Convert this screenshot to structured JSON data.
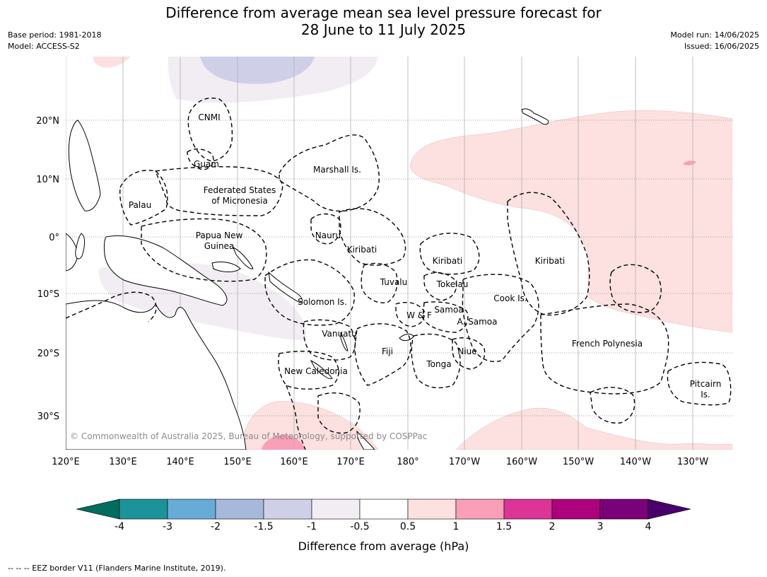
{
  "title": {
    "line1": "Difference from average mean sea level pressure forecast for",
    "line2": "28 June to 11 July 2025"
  },
  "meta_left": {
    "base_period": "Base period: 1981-2018",
    "model": "Model: ACCESS-S2"
  },
  "meta_right": {
    "model_run": "Model run: 14/06/2025",
    "issued": "Issued: 16/06/2025"
  },
  "map": {
    "lon_labels": [
      "120°E",
      "130°E",
      "140°E",
      "150°E",
      "160°E",
      "170°E",
      "180°",
      "170°W",
      "160°W",
      "150°W",
      "140°W",
      "130°W"
    ],
    "lat_labels": [
      "20°N",
      "10°N",
      "0°",
      "10°S",
      "20°S",
      "30°S"
    ],
    "region_labels": [
      "CNMI",
      "Guam",
      "Marshall Is.",
      "Federated States",
      "of Micronesia",
      "Palau",
      "Nauru",
      "Papua New",
      "Guinea",
      "Kiribati",
      "Kiribati",
      "Kiribati",
      "Tuvalu",
      "Tokelau",
      "Solomon Is.",
      "W & F",
      "Samoa",
      "A. Samoa",
      "Cook Is.",
      "Vanuatu",
      "Fiji",
      "Niue",
      "Tonga",
      "French Polynesia",
      "New Caledonia",
      "Pitcairn",
      "Is."
    ],
    "copyright": "© Commonwealth of Australia 2025, Bureau of Meteorology, supported by COSPPac"
  },
  "colorbar": {
    "ticks": [
      "-4",
      "-3",
      "-2",
      "-1.5",
      "-1",
      "-0.5",
      "0.5",
      "1",
      "1.5",
      "2",
      "3",
      "4"
    ],
    "colors": {
      "below": "#006d5e",
      "bins": [
        "#1b9499",
        "#66acd6",
        "#a6b9da",
        "#cfd0e8",
        "#f2ecf3",
        "#ffffff",
        "#fde0e0",
        "#f99fb8",
        "#dd3497",
        "#ae017e",
        "#7a0177"
      ],
      "above": "#49006a"
    },
    "label": "Difference from average (hPa)"
  },
  "footnote": "--  --  -- EEZ border V11 (Flanders Marine Institute, 2019)."
}
